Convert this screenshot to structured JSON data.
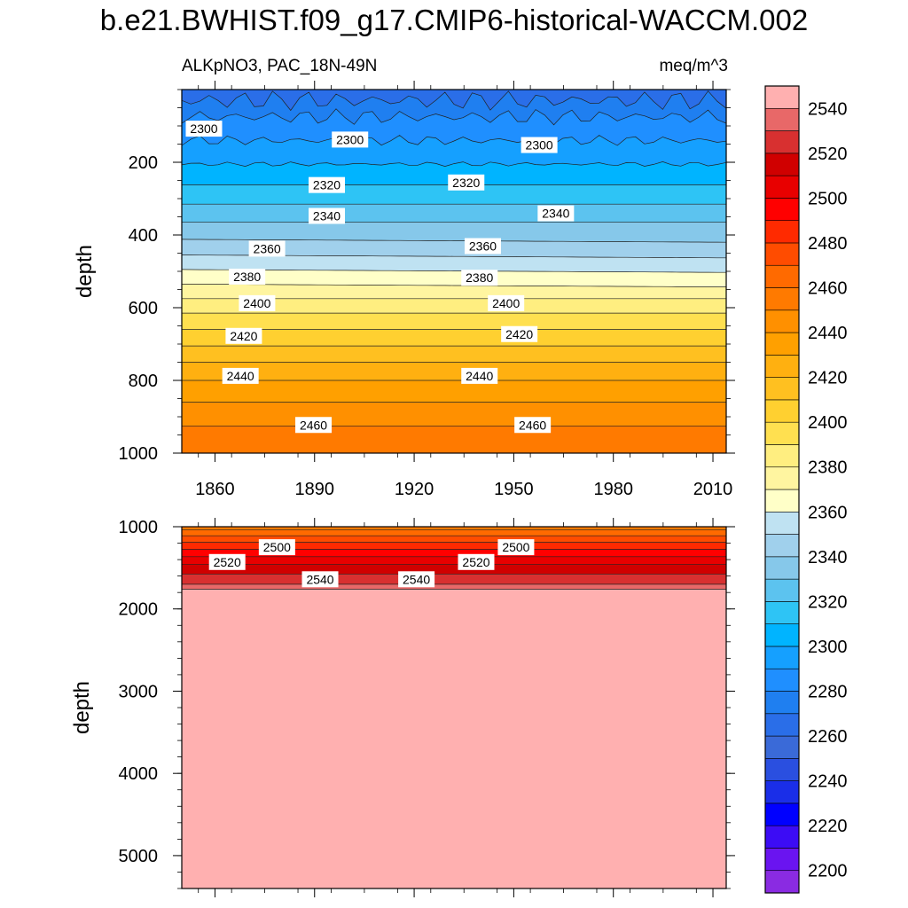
{
  "title": "b.e21.BWHIST.f09_g17.CMIP6-historical-WACCM.002",
  "left_label": "ALKpNO3, PAC_18N-49N",
  "right_label": "meq/m^3",
  "chart_data": [
    {
      "type": "heatmap",
      "panel": "upper",
      "ylabel": "depth",
      "xlim": [
        1850,
        2014
      ],
      "ylim": [
        0,
        1000
      ],
      "y_inverted": true,
      "x_ticks": [
        1860,
        1890,
        1920,
        1950,
        1980,
        2010
      ],
      "y_ticks": [
        200,
        400,
        600,
        800,
        1000
      ],
      "contours": [
        {
          "level": 2280,
          "depth": 30
        },
        {
          "level": 2290,
          "depth": 75
        },
        {
          "level": 2300,
          "depth": 140
        },
        {
          "level": 2310,
          "depth": 205
        },
        {
          "level": 2320,
          "depth": 262
        },
        {
          "level": 2330,
          "depth": 315
        },
        {
          "level": 2340,
          "depth": 365
        },
        {
          "level": 2350,
          "depth": 412
        },
        {
          "level": 2360,
          "depth": 455
        },
        {
          "level": 2370,
          "depth": 495
        },
        {
          "level": 2380,
          "depth": 535
        },
        {
          "level": 2390,
          "depth": 575
        },
        {
          "level": 2400,
          "depth": 615
        },
        {
          "level": 2410,
          "depth": 660
        },
        {
          "level": 2420,
          "depth": 705
        },
        {
          "level": 2430,
          "depth": 750
        },
        {
          "level": 2440,
          "depth": 800
        },
        {
          "level": 2450,
          "depth": 860
        },
        {
          "level": 2460,
          "depth": 925
        }
      ],
      "contour_labels": [
        {
          "text": "2300",
          "x": 1852,
          "y": 110
        },
        {
          "text": "2300",
          "x": 1896,
          "y": 140
        },
        {
          "text": "2300",
          "x": 1953,
          "y": 155
        },
        {
          "text": "2320",
          "x": 1889,
          "y": 265
        },
        {
          "text": "2320",
          "x": 1931,
          "y": 258
        },
        {
          "text": "2340",
          "x": 1889,
          "y": 350
        },
        {
          "text": "2340",
          "x": 1958,
          "y": 343
        },
        {
          "text": "2360",
          "x": 1871,
          "y": 440
        },
        {
          "text": "2360",
          "x": 1936,
          "y": 433
        },
        {
          "text": "2380",
          "x": 1865,
          "y": 517
        },
        {
          "text": "2380",
          "x": 1935,
          "y": 520
        },
        {
          "text": "2400",
          "x": 1868,
          "y": 590
        },
        {
          "text": "2400",
          "x": 1943,
          "y": 590
        },
        {
          "text": "2420",
          "x": 1864,
          "y": 680
        },
        {
          "text": "2420",
          "x": 1947,
          "y": 675
        },
        {
          "text": "2440",
          "x": 1863,
          "y": 790
        },
        {
          "text": "2440",
          "x": 1935,
          "y": 790
        },
        {
          "text": "2460",
          "x": 1885,
          "y": 925
        },
        {
          "text": "2460",
          "x": 1951,
          "y": 925
        }
      ]
    },
    {
      "type": "heatmap",
      "panel": "lower",
      "ylabel": "depth",
      "xlim": [
        1850,
        2014
      ],
      "ylim": [
        1000,
        5400
      ],
      "y_inverted": true,
      "y_ticks": [
        1000,
        2000,
        3000,
        4000,
        5000
      ],
      "contours": [
        {
          "level": 2470,
          "depth": 1040
        },
        {
          "level": 2480,
          "depth": 1110
        },
        {
          "level": 2490,
          "depth": 1190
        },
        {
          "level": 2500,
          "depth": 1275
        },
        {
          "level": 2510,
          "depth": 1365
        },
        {
          "level": 2520,
          "depth": 1460
        },
        {
          "level": 2530,
          "depth": 1575
        },
        {
          "level": 2540,
          "depth": 1700
        },
        {
          "level": 2550,
          "depth": 1760
        }
      ],
      "contour_labels": [
        {
          "text": "2500",
          "x": 1874,
          "y": 1260
        },
        {
          "text": "2500",
          "x": 1946,
          "y": 1260
        },
        {
          "text": "2520",
          "x": 1859,
          "y": 1440
        },
        {
          "text": "2520",
          "x": 1934,
          "y": 1440
        },
        {
          "text": "2540",
          "x": 1887,
          "y": 1650
        },
        {
          "text": "2540",
          "x": 1916,
          "y": 1650
        }
      ]
    }
  ],
  "colorbar": {
    "levels": [
      2200,
      2210,
      2220,
      2230,
      2240,
      2250,
      2260,
      2270,
      2280,
      2290,
      2300,
      2310,
      2320,
      2330,
      2340,
      2350,
      2360,
      2370,
      2380,
      2390,
      2400,
      2410,
      2420,
      2430,
      2440,
      2450,
      2460,
      2470,
      2480,
      2490,
      2500,
      2510,
      2520,
      2530,
      2540,
      2550
    ],
    "labels": [
      "2200",
      "2220",
      "2240",
      "2260",
      "2280",
      "2300",
      "2320",
      "2340",
      "2360",
      "2380",
      "2400",
      "2420",
      "2440",
      "2460",
      "2480",
      "2500",
      "2520",
      "2540"
    ],
    "colors": [
      "#8a2be2",
      "#6a14f0",
      "#3c0cf5",
      "#0000ff",
      "#1a2ee8",
      "#2a4fe0",
      "#3a6ad8",
      "#2a6ee8",
      "#1f7ff0",
      "#1f8fff",
      "#15a0ff",
      "#00b4ff",
      "#2ec4f5",
      "#5cc3ef",
      "#86c8ea",
      "#a0d0ec",
      "#bfe2f2",
      "#ffffc8",
      "#fff5a0",
      "#ffee80",
      "#ffe050",
      "#ffd030",
      "#ffc020",
      "#ffb010",
      "#ffa000",
      "#ff9000",
      "#ff7a00",
      "#ff6a00",
      "#ff4c00",
      "#ff2a00",
      "#ff0000",
      "#e80000",
      "#d00000",
      "#d83030",
      "#e86868",
      "#ffb0b0"
    ]
  }
}
